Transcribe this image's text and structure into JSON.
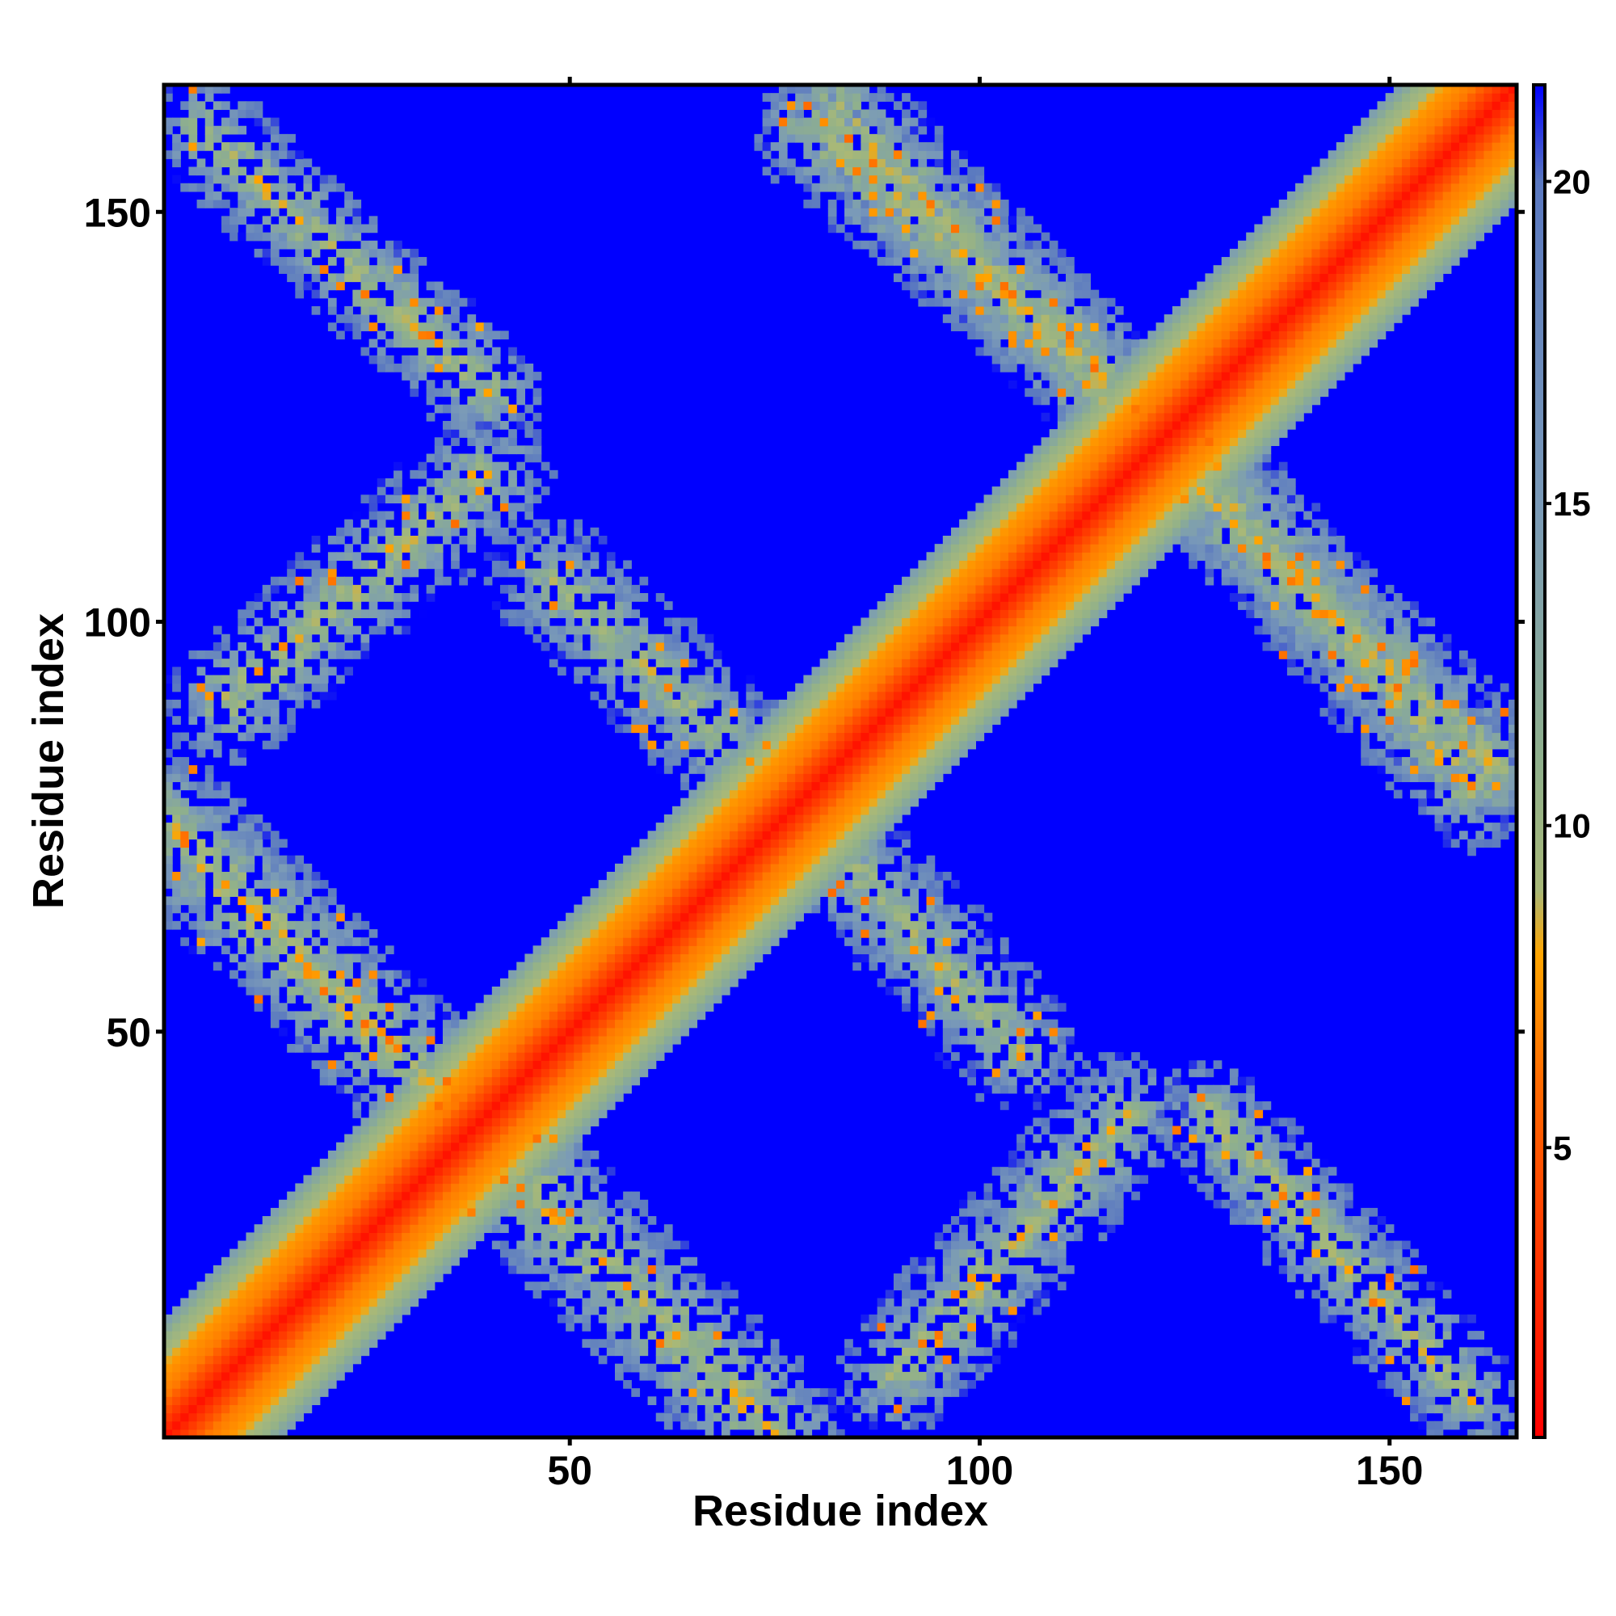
{
  "chart_data": {
    "type": "heatmap",
    "title": "",
    "xlabel": "Residue index",
    "ylabel": "Residue index",
    "n_residues": 165,
    "xlim": [
      1,
      165
    ],
    "ylim": [
      1,
      165
    ],
    "x_ticks": [
      50,
      100,
      150
    ],
    "y_ticks": [
      50,
      100,
      150
    ],
    "x_tick_labels": [
      "50",
      "100",
      "150"
    ],
    "y_tick_labels": [
      "50",
      "100",
      "150"
    ],
    "colorbar": {
      "range": [
        0.5,
        21.5
      ],
      "ticks": [
        5,
        10,
        15,
        20
      ],
      "tick_labels": [
        "5",
        "10",
        "15",
        "20"
      ],
      "stops": [
        {
          "value": 0.5,
          "color": "#ff0000"
        },
        {
          "value": 6.0,
          "color": "#ff6a00"
        },
        {
          "value": 8.0,
          "color": "#ffa500"
        },
        {
          "value": 9.0,
          "color": "#a8b878"
        },
        {
          "value": 11.0,
          "color": "#8fb08c"
        },
        {
          "value": 15.0,
          "color": "#7a9ab8"
        },
        {
          "value": 20.0,
          "color": "#5a78c0"
        },
        {
          "value": 21.5,
          "color": "#0000ff"
        }
      ]
    },
    "background_value": 21.5,
    "diagonal_band": {
      "center": 0,
      "width_by_distance": [
        [
          0,
          1.5
        ],
        [
          3,
          4.5
        ],
        [
          5,
          6.5
        ],
        [
          8,
          7.5
        ],
        [
          12,
          10.5
        ],
        [
          14,
          14
        ]
      ]
    },
    "contact_segments": [
      {
        "from": [
          1,
          75
        ],
        "to": [
          38,
          38
        ],
        "halfwidth": 9,
        "min_value": 7.0
      },
      {
        "from": [
          38,
          38
        ],
        "to": [
          75,
          1
        ],
        "halfwidth": 9,
        "min_value": 7.0
      },
      {
        "from": [
          8,
          90
        ],
        "to": [
          40,
          118
        ],
        "halfwidth": 8,
        "min_value": 7.5
      },
      {
        "from": [
          90,
          8
        ],
        "to": [
          118,
          40
        ],
        "halfwidth": 8,
        "min_value": 7.5
      },
      {
        "from": [
          5,
          160
        ],
        "to": [
          40,
          128
        ],
        "halfwidth": 7,
        "min_value": 7.5
      },
      {
        "from": [
          160,
          5
        ],
        "to": [
          128,
          40
        ],
        "halfwidth": 7,
        "min_value": 7.5
      },
      {
        "from": [
          48,
          105
        ],
        "to": [
          78,
          77
        ],
        "halfwidth": 8,
        "min_value": 8.0
      },
      {
        "from": [
          105,
          48
        ],
        "to": [
          77,
          78
        ],
        "halfwidth": 8,
        "min_value": 8.0
      },
      {
        "from": [
          80,
          160
        ],
        "to": [
          115,
          130
        ],
        "halfwidth": 8,
        "min_value": 7.5
      },
      {
        "from": [
          160,
          80
        ],
        "to": [
          130,
          115
        ],
        "halfwidth": 8,
        "min_value": 7.5
      },
      {
        "from": [
          125,
          118
        ],
        "to": [
          163,
          82
        ],
        "halfwidth": 8,
        "min_value": 7.5
      },
      {
        "from": [
          118,
          125
        ],
        "to": [
          82,
          163
        ],
        "halfwidth": 8,
        "min_value": 7.5
      }
    ]
  }
}
